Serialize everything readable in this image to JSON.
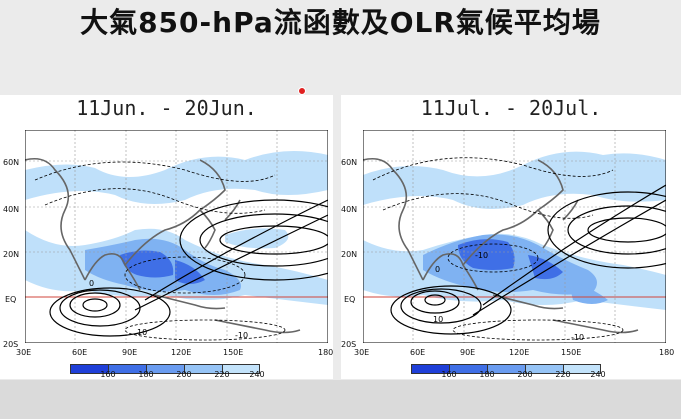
{
  "slide": {
    "title": "大氣850-hPa流函數及OLR氣候平均場"
  },
  "panels": [
    {
      "title": "11Jun. - 20Jun.",
      "lat_labels": [
        "60N",
        "40N",
        "20N",
        "EQ",
        "20S"
      ],
      "lon_labels": [
        "30E",
        "60E",
        "90E",
        "120E",
        "150E",
        "180"
      ],
      "contour_labels": [
        "0",
        "10",
        "-10"
      ]
    },
    {
      "title": "11Jul. - 20Jul.",
      "lat_labels": [
        "60N",
        "40N",
        "20N",
        "EQ",
        "20S"
      ],
      "lon_labels": [
        "30E",
        "60E",
        "90E",
        "120E",
        "150E",
        "180"
      ],
      "contour_labels": [
        "-10",
        "0",
        "10",
        "-10"
      ]
    }
  ],
  "colorbar": {
    "labels": [
      "160",
      "180",
      "200",
      "220",
      "240"
    ],
    "colors": [
      "#1f3fd8",
      "#3f6fe6",
      "#6a9cf0",
      "#96c4f6",
      "#c3e3fb"
    ]
  },
  "colors": {
    "shading_dark": "#3f6fe6",
    "shading_mid": "#7fb2f2",
    "shading_light": "#bfe0fa",
    "equator_line": "#d0453b",
    "cursor": "#e02020"
  }
}
